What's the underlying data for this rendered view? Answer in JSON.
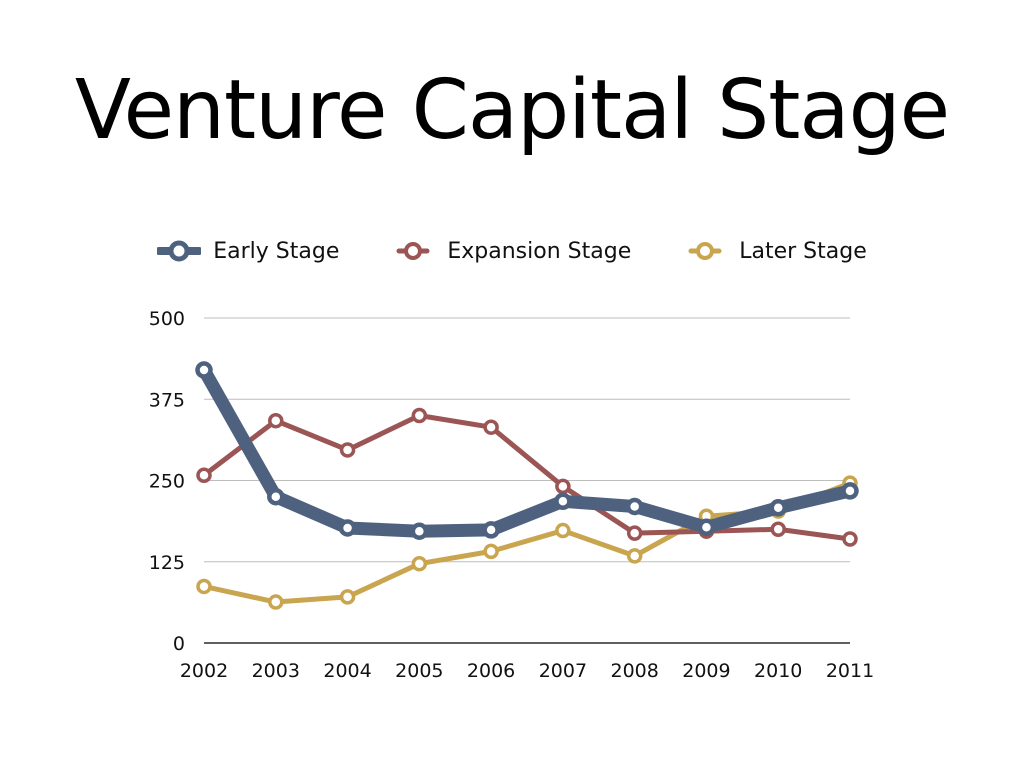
{
  "title": "Venture Capital Stage",
  "colors": {
    "early": "#4e6280",
    "expansion": "#9b5555",
    "later": "#c9a550",
    "grid": "#bdbdbd",
    "axis": "#000000"
  },
  "chart_data": {
    "type": "line",
    "title": "Venture Capital Stage",
    "xlabel": "",
    "ylabel": "",
    "x": [
      "2002",
      "2003",
      "2004",
      "2005",
      "2006",
      "2007",
      "2008",
      "2009",
      "2010",
      "2011"
    ],
    "ylim": [
      0,
      500
    ],
    "yticks": [
      0,
      125,
      250,
      375,
      500
    ],
    "grid": true,
    "legend_position": "top-center",
    "series": [
      {
        "name": "Early Stage",
        "color": "#4e6280",
        "values": [
          420,
          225,
          177,
          172,
          174,
          218,
          210,
          178,
          208,
          234
        ]
      },
      {
        "name": "Expansion Stage",
        "color": "#9b5555",
        "values": [
          258,
          342,
          297,
          350,
          332,
          241,
          169,
          172,
          175,
          160
        ]
      },
      {
        "name": "Later Stage",
        "color": "#c9a550",
        "values": [
          87,
          63,
          71,
          122,
          141,
          173,
          134,
          195,
          203,
          246
        ]
      }
    ]
  }
}
